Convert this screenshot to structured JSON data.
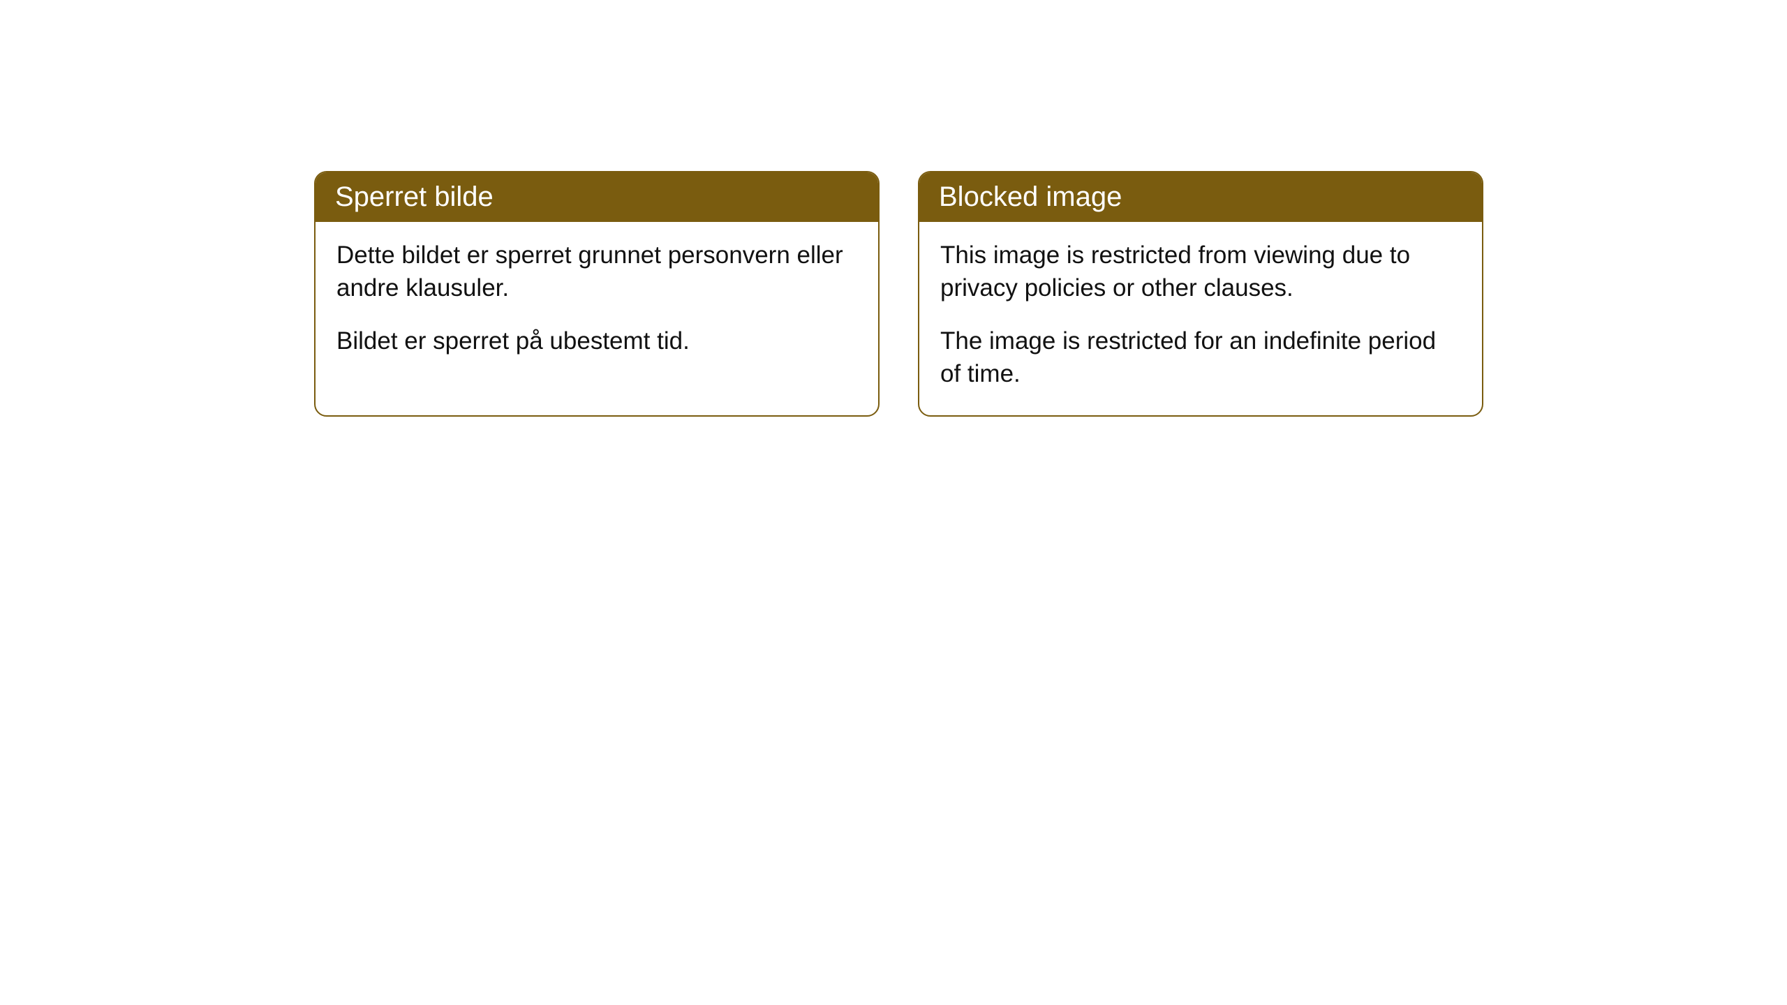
{
  "cards": [
    {
      "title": "Sperret bilde",
      "paragraph1": "Dette bildet er sperret grunnet personvern eller andre klausuler.",
      "paragraph2": "Bildet er sperret på ubestemt tid."
    },
    {
      "title": "Blocked image",
      "paragraph1": "This image is restricted from viewing due to privacy policies or other clauses.",
      "paragraph2": "The image is restricted for an indefinite period of time."
    }
  ],
  "styling": {
    "header_bg_color": "#7a5c0f",
    "header_text_color": "#ffffff",
    "border_color": "#7a5c0f",
    "body_text_color": "#111111",
    "page_bg_color": "#ffffff",
    "border_radius": 18,
    "header_fontsize": 40,
    "body_fontsize": 35
  }
}
